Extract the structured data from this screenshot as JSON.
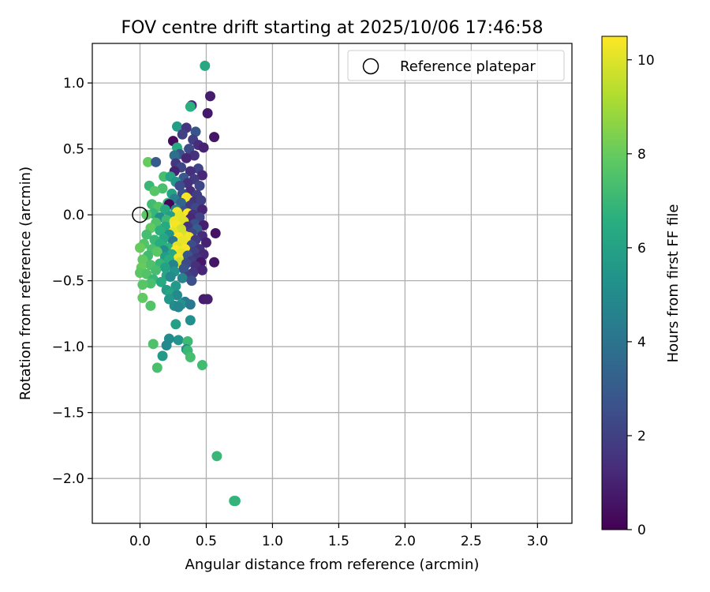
{
  "chart_data": {
    "type": "scatter",
    "title": "FOV centre drift starting at 2025/10/06 17:46:58",
    "xlabel": "Angular distance from reference (arcmin)",
    "ylabel": "Rotation from reference (arcmin)",
    "xlim": [
      -0.36,
      3.26
    ],
    "ylim": [
      -2.34,
      1.3
    ],
    "xticks": [
      0.0,
      0.5,
      1.0,
      1.5,
      2.0,
      2.5,
      3.0
    ],
    "xtick_labels": [
      "0.0",
      "0.5",
      "1.0",
      "1.5",
      "2.0",
      "2.5",
      "3.0"
    ],
    "yticks": [
      1.0,
      0.5,
      0.0,
      -0.5,
      -1.0,
      -1.5,
      -2.0
    ],
    "ytick_labels": [
      "1.0",
      "0.5",
      "0.0",
      "−0.5",
      "−1.0",
      "−1.5",
      "−2.0"
    ],
    "grid": true,
    "legend": {
      "position": "upper right",
      "entries": [
        {
          "label": "Reference platepar",
          "marker": "open-circle"
        }
      ]
    },
    "reference_point": {
      "x": 0.0,
      "y": 0.0
    },
    "colorbar": {
      "label": "Hours from first FF file",
      "min": 0,
      "max": 10.5,
      "ticks": [
        0,
        2,
        4,
        6,
        8,
        10
      ],
      "tick_labels": [
        "0",
        "2",
        "4",
        "6",
        "8",
        "10"
      ],
      "colormap": "viridis"
    },
    "points": [
      {
        "x": 0.49,
        "y": 1.13,
        "h": 6.3
      },
      {
        "x": 0.53,
        "y": 0.9,
        "h": 0.8
      },
      {
        "x": 0.39,
        "y": 0.83,
        "h": 1.2
      },
      {
        "x": 0.38,
        "y": 0.82,
        "h": 6.6
      },
      {
        "x": 0.51,
        "y": 0.77,
        "h": 0.7
      },
      {
        "x": 0.28,
        "y": 0.67,
        "h": 5.8
      },
      {
        "x": 0.35,
        "y": 0.66,
        "h": 1.6
      },
      {
        "x": 0.42,
        "y": 0.63,
        "h": 2.8
      },
      {
        "x": 0.32,
        "y": 0.61,
        "h": 2.0
      },
      {
        "x": 0.56,
        "y": 0.59,
        "h": 0.6
      },
      {
        "x": 0.25,
        "y": 0.56,
        "h": 0.3
      },
      {
        "x": 0.4,
        "y": 0.57,
        "h": 1.9
      },
      {
        "x": 0.44,
        "y": 0.53,
        "h": 1.3
      },
      {
        "x": 0.48,
        "y": 0.51,
        "h": 1.0
      },
      {
        "x": 0.28,
        "y": 0.51,
        "h": 6.4
      },
      {
        "x": 0.37,
        "y": 0.5,
        "h": 2.4
      },
      {
        "x": 0.3,
        "y": 0.46,
        "h": 2.7
      },
      {
        "x": 0.26,
        "y": 0.45,
        "h": 3.8
      },
      {
        "x": 0.41,
        "y": 0.45,
        "h": 1.5
      },
      {
        "x": 0.35,
        "y": 0.43,
        "h": 1.1
      },
      {
        "x": 0.06,
        "y": 0.4,
        "h": 8.0
      },
      {
        "x": 0.12,
        "y": 0.4,
        "h": 3.0
      },
      {
        "x": 0.27,
        "y": 0.39,
        "h": 1.7
      },
      {
        "x": 0.31,
        "y": 0.36,
        "h": 2.2
      },
      {
        "x": 0.44,
        "y": 0.35,
        "h": 2.1
      },
      {
        "x": 0.38,
        "y": 0.33,
        "h": 1.4
      },
      {
        "x": 0.26,
        "y": 0.33,
        "h": 1.0
      },
      {
        "x": 0.47,
        "y": 0.3,
        "h": 1.2
      },
      {
        "x": 0.18,
        "y": 0.29,
        "h": 7.3
      },
      {
        "x": 0.23,
        "y": 0.29,
        "h": 6.1
      },
      {
        "x": 0.33,
        "y": 0.28,
        "h": 2.9
      },
      {
        "x": 0.41,
        "y": 0.27,
        "h": 1.8
      },
      {
        "x": 0.27,
        "y": 0.25,
        "h": 5.5
      },
      {
        "x": 0.36,
        "y": 0.24,
        "h": 1.5
      },
      {
        "x": 0.3,
        "y": 0.22,
        "h": 2.5
      },
      {
        "x": 0.07,
        "y": 0.22,
        "h": 7.0
      },
      {
        "x": 0.45,
        "y": 0.22,
        "h": 2.2
      },
      {
        "x": 0.17,
        "y": 0.2,
        "h": 7.4
      },
      {
        "x": 0.11,
        "y": 0.18,
        "h": 7.7
      },
      {
        "x": 0.38,
        "y": 0.18,
        "h": 1.3
      },
      {
        "x": 0.24,
        "y": 0.16,
        "h": 6.0
      },
      {
        "x": 0.32,
        "y": 0.16,
        "h": 2.6
      },
      {
        "x": 0.43,
        "y": 0.15,
        "h": 1.9
      },
      {
        "x": 0.35,
        "y": 0.13,
        "h": 10.4
      },
      {
        "x": 0.26,
        "y": 0.12,
        "h": 4.5
      },
      {
        "x": 0.41,
        "y": 0.1,
        "h": 1.6
      },
      {
        "x": 0.46,
        "y": 0.11,
        "h": 2.0
      },
      {
        "x": 0.21,
        "y": 0.09,
        "h": 6.8
      },
      {
        "x": 0.31,
        "y": 0.09,
        "h": 3.4
      },
      {
        "x": 0.22,
        "y": 0.08,
        "h": 0.1
      },
      {
        "x": 0.09,
        "y": 0.08,
        "h": 7.2
      },
      {
        "x": 0.38,
        "y": 0.07,
        "h": 1.8
      },
      {
        "x": 0.14,
        "y": 0.06,
        "h": 7.6
      },
      {
        "x": 0.42,
        "y": 0.05,
        "h": 2.3
      },
      {
        "x": 0.27,
        "y": 0.04,
        "h": 4.8
      },
      {
        "x": 0.47,
        "y": 0.04,
        "h": 1.1
      },
      {
        "x": 0.19,
        "y": 0.04,
        "h": 6.3
      },
      {
        "x": 0.33,
        "y": 0.03,
        "h": 2.7
      },
      {
        "x": 0.28,
        "y": 0.02,
        "h": 10.3
      },
      {
        "x": 0.36,
        "y": 0.01,
        "h": 10.5
      },
      {
        "x": 0.1,
        "y": 0.01,
        "h": 6.9
      },
      {
        "x": 0.05,
        "y": 0.0,
        "h": 7.8
      },
      {
        "x": 0.4,
        "y": 0.0,
        "h": 1.4
      },
      {
        "x": 0.23,
        "y": -0.01,
        "h": 5.9
      },
      {
        "x": 0.3,
        "y": -0.01,
        "h": 10.1
      },
      {
        "x": 0.15,
        "y": -0.02,
        "h": 5.2
      },
      {
        "x": 0.45,
        "y": -0.02,
        "h": 2.1
      },
      {
        "x": 0.38,
        "y": -0.03,
        "h": 1.2
      },
      {
        "x": 0.2,
        "y": -0.04,
        "h": 7.1
      },
      {
        "x": 0.26,
        "y": -0.05,
        "h": 10.2
      },
      {
        "x": 0.33,
        "y": -0.05,
        "h": 10.0
      },
      {
        "x": 0.12,
        "y": -0.06,
        "h": 7.5
      },
      {
        "x": 0.41,
        "y": -0.07,
        "h": 2.6
      },
      {
        "x": 0.48,
        "y": -0.08,
        "h": 0.9
      },
      {
        "x": 0.27,
        "y": -0.08,
        "h": 10.4
      },
      {
        "x": 0.19,
        "y": -0.09,
        "h": 6.4
      },
      {
        "x": 0.36,
        "y": -0.09,
        "h": 1.7
      },
      {
        "x": 0.08,
        "y": -0.1,
        "h": 7.9
      },
      {
        "x": 0.31,
        "y": -0.11,
        "h": 9.8
      },
      {
        "x": 0.43,
        "y": -0.11,
        "h": 3.1
      },
      {
        "x": 0.15,
        "y": -0.12,
        "h": 6.6
      },
      {
        "x": 0.25,
        "y": -0.13,
        "h": 10.1
      },
      {
        "x": 0.57,
        "y": -0.14,
        "h": 0.5
      },
      {
        "x": 0.39,
        "y": -0.14,
        "h": 2.2
      },
      {
        "x": 0.22,
        "y": -0.15,
        "h": 5.3
      },
      {
        "x": 0.05,
        "y": -0.15,
        "h": 7.3
      },
      {
        "x": 0.34,
        "y": -0.16,
        "h": 9.9
      },
      {
        "x": 0.47,
        "y": -0.16,
        "h": 1.3
      },
      {
        "x": 0.29,
        "y": -0.17,
        "h": 10.5
      },
      {
        "x": 0.18,
        "y": -0.18,
        "h": 6.2
      },
      {
        "x": 0.37,
        "y": -0.17,
        "h": 10.3
      },
      {
        "x": 0.42,
        "y": -0.19,
        "h": 1.8
      },
      {
        "x": 0.11,
        "y": -0.19,
        "h": 7.0
      },
      {
        "x": 0.25,
        "y": -0.2,
        "h": 4.2
      },
      {
        "x": 0.32,
        "y": -0.2,
        "h": 10.2
      },
      {
        "x": 0.5,
        "y": -0.21,
        "h": 1.0
      },
      {
        "x": 0.15,
        "y": -0.22,
        "h": 6.5
      },
      {
        "x": 0.03,
        "y": -0.22,
        "h": 7.6
      },
      {
        "x": 0.39,
        "y": -0.23,
        "h": 2.5
      },
      {
        "x": 0.28,
        "y": -0.24,
        "h": 10.0
      },
      {
        "x": 0.21,
        "y": -0.25,
        "h": 6.7
      },
      {
        "x": 0.45,
        "y": -0.26,
        "h": 1.5
      },
      {
        "x": 0.34,
        "y": -0.26,
        "h": 10.4
      },
      {
        "x": 0.09,
        "y": -0.26,
        "h": 7.4
      },
      {
        "x": 0.18,
        "y": -0.27,
        "h": 5.1
      },
      {
        "x": 0.0,
        "y": -0.25,
        "h": 8.0
      },
      {
        "x": 0.27,
        "y": -0.27,
        "h": 10.5
      },
      {
        "x": 0.41,
        "y": -0.28,
        "h": 2.0
      },
      {
        "x": 0.13,
        "y": -0.28,
        "h": 7.8
      },
      {
        "x": 0.31,
        "y": -0.29,
        "h": 10.1
      },
      {
        "x": 0.24,
        "y": -0.3,
        "h": 6.3
      },
      {
        "x": 0.48,
        "y": -0.3,
        "h": 1.2
      },
      {
        "x": 0.36,
        "y": -0.31,
        "h": 2.8
      },
      {
        "x": 0.06,
        "y": -0.31,
        "h": 7.2
      },
      {
        "x": 0.19,
        "y": -0.32,
        "h": 5.8
      },
      {
        "x": 0.43,
        "y": -0.33,
        "h": 1.6
      },
      {
        "x": 0.29,
        "y": -0.33,
        "h": 10.3
      },
      {
        "x": 0.02,
        "y": -0.34,
        "h": 7.9
      },
      {
        "x": 0.22,
        "y": -0.34,
        "h": 6.5
      },
      {
        "x": 0.39,
        "y": -0.35,
        "h": 1.9
      },
      {
        "x": 0.3,
        "y": -0.36,
        "h": 9.7
      },
      {
        "x": 0.46,
        "y": -0.36,
        "h": 0.7
      },
      {
        "x": 0.56,
        "y": -0.36,
        "h": 0.6
      },
      {
        "x": 0.15,
        "y": -0.37,
        "h": 6.9
      },
      {
        "x": 0.35,
        "y": -0.37,
        "h": 2.3
      },
      {
        "x": 0.08,
        "y": -0.38,
        "h": 7.5
      },
      {
        "x": 0.25,
        "y": -0.38,
        "h": 4.6
      },
      {
        "x": 0.42,
        "y": -0.39,
        "h": 1.4
      },
      {
        "x": 0.01,
        "y": -0.4,
        "h": 8.0
      },
      {
        "x": 0.19,
        "y": -0.4,
        "h": 6.0
      },
      {
        "x": 0.33,
        "y": -0.41,
        "h": 2.7
      },
      {
        "x": 0.47,
        "y": -0.42,
        "h": 1.1
      },
      {
        "x": 0.12,
        "y": -0.42,
        "h": 7.3
      },
      {
        "x": 0.26,
        "y": -0.43,
        "h": 5.4
      },
      {
        "x": 0.0,
        "y": -0.44,
        "h": 7.8
      },
      {
        "x": 0.4,
        "y": -0.44,
        "h": 1.7
      },
      {
        "x": 0.05,
        "y": -0.45,
        "h": 7.6
      },
      {
        "x": 0.2,
        "y": -0.46,
        "h": 6.2
      },
      {
        "x": 0.36,
        "y": -0.47,
        "h": 2.0
      },
      {
        "x": 0.23,
        "y": -0.47,
        "h": 5.0
      },
      {
        "x": 0.32,
        "y": -0.48,
        "h": 4.7
      },
      {
        "x": 0.1,
        "y": -0.49,
        "h": 7.0
      },
      {
        "x": 0.39,
        "y": -0.5,
        "h": 2.6
      },
      {
        "x": 0.16,
        "y": -0.51,
        "h": 6.4
      },
      {
        "x": 0.08,
        "y": -0.52,
        "h": 7.4
      },
      {
        "x": 0.02,
        "y": -0.53,
        "h": 7.7
      },
      {
        "x": 0.27,
        "y": -0.54,
        "h": 5.6
      },
      {
        "x": 0.2,
        "y": -0.57,
        "h": 5.8
      },
      {
        "x": 0.23,
        "y": -0.6,
        "h": 6.1
      },
      {
        "x": 0.28,
        "y": -0.61,
        "h": 4.9
      },
      {
        "x": 0.02,
        "y": -0.63,
        "h": 7.9
      },
      {
        "x": 0.22,
        "y": -0.64,
        "h": 5.5
      },
      {
        "x": 0.48,
        "y": -0.64,
        "h": 0.8
      },
      {
        "x": 0.51,
        "y": -0.64,
        "h": 0.9
      },
      {
        "x": 0.34,
        "y": -0.66,
        "h": 4.4
      },
      {
        "x": 0.31,
        "y": -0.68,
        "h": 5.3
      },
      {
        "x": 0.38,
        "y": -0.68,
        "h": 4.2
      },
      {
        "x": 0.26,
        "y": -0.69,
        "h": 5.1
      },
      {
        "x": 0.08,
        "y": -0.69,
        "h": 7.6
      },
      {
        "x": 0.29,
        "y": -0.7,
        "h": 4.8
      },
      {
        "x": 0.38,
        "y": -0.8,
        "h": 5.2
      },
      {
        "x": 0.27,
        "y": -0.83,
        "h": 5.9
      },
      {
        "x": 0.29,
        "y": -0.95,
        "h": 5.4
      },
      {
        "x": 0.22,
        "y": -0.94,
        "h": 5.0
      },
      {
        "x": 0.36,
        "y": -0.96,
        "h": 7.1
      },
      {
        "x": 0.1,
        "y": -0.98,
        "h": 7.5
      },
      {
        "x": 0.2,
        "y": -0.99,
        "h": 4.9
      },
      {
        "x": 0.35,
        "y": -1.02,
        "h": 5.1
      },
      {
        "x": 0.36,
        "y": -1.03,
        "h": 7.0
      },
      {
        "x": 0.17,
        "y": -1.07,
        "h": 5.6
      },
      {
        "x": 0.38,
        "y": -1.08,
        "h": 7.3
      },
      {
        "x": 0.47,
        "y": -1.14,
        "h": 7.2
      },
      {
        "x": 0.13,
        "y": -1.16,
        "h": 7.4
      },
      {
        "x": 0.58,
        "y": -1.83,
        "h": 7.0
      },
      {
        "x": 0.71,
        "y": -2.17,
        "h": 6.9
      },
      {
        "x": 0.72,
        "y": -2.17,
        "h": 6.8
      }
    ]
  }
}
